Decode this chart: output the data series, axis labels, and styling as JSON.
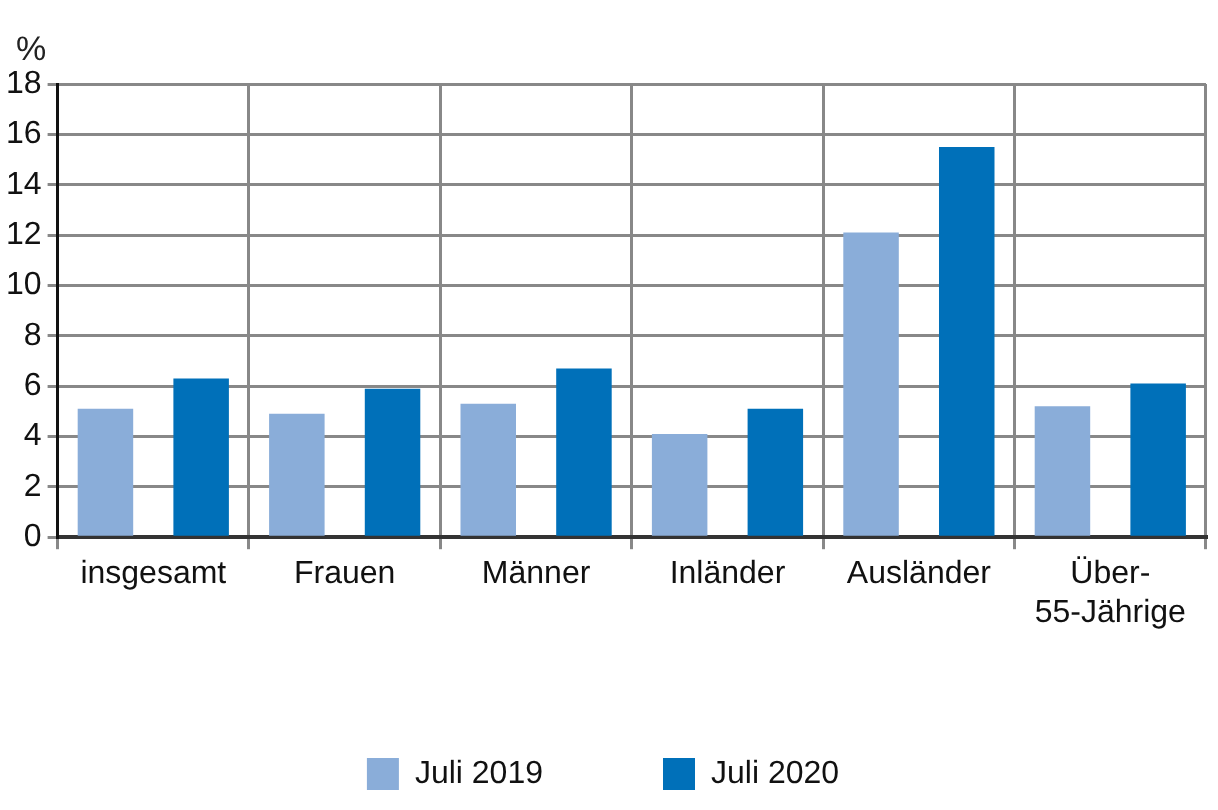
{
  "chart_data": {
    "type": "bar",
    "ylabel": "%",
    "categories": [
      "insgesamt",
      "Frauen",
      "Männer",
      "Inländer",
      "Ausländer",
      "Über-55-Jährige"
    ],
    "series": [
      {
        "name": "Juli 2019",
        "color": "#8aadd9",
        "values": [
          5.1,
          4.9,
          5.3,
          4.1,
          12.1,
          5.2
        ]
      },
      {
        "name": "Juli 2020",
        "color": "#0070b9",
        "values": [
          6.3,
          5.9,
          6.7,
          5.1,
          15.5,
          6.1
        ]
      }
    ],
    "ylim": [
      0,
      18
    ],
    "yticks": [
      0,
      2,
      4,
      6,
      8,
      10,
      12,
      14,
      16,
      18
    ],
    "grid": true,
    "legend": "bottom"
  }
}
